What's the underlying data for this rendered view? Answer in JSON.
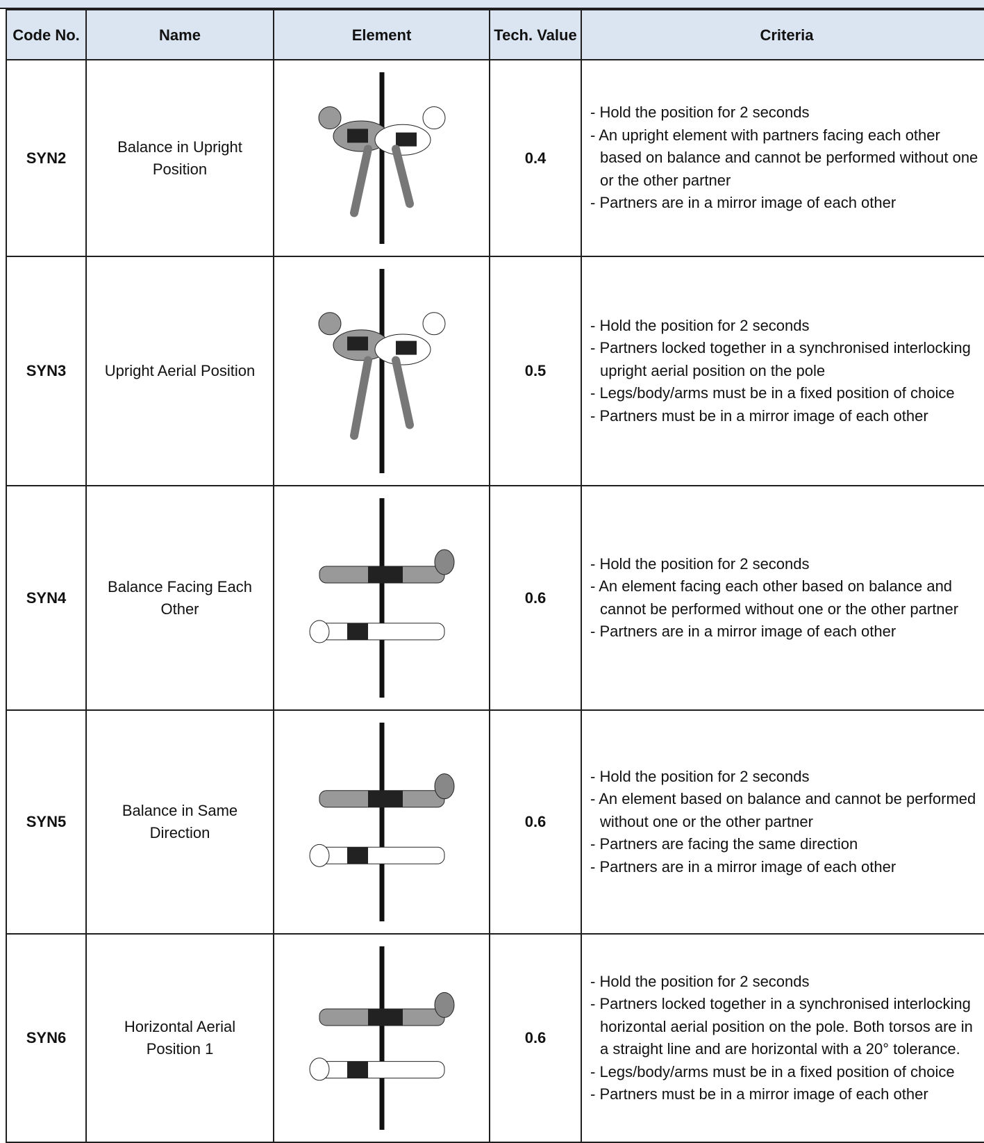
{
  "table": {
    "header": [
      "Code No.",
      "Name",
      "Element",
      "Tech. Value",
      "Criteria"
    ],
    "rows": [
      {
        "code": "SYN2",
        "name": "Balance in Upright Position",
        "value": "0.4",
        "criteria": [
          "- Hold the position for 2 seconds",
          "- An upright element with partners facing each other based on balance and cannot be performed without one or the other partner",
          "- Partners are in a mirror image of each other"
        ]
      },
      {
        "code": "SYN3",
        "name": "Upright Aerial Position",
        "value": "0.5",
        "criteria": [
          "- Hold the position for 2 seconds",
          "- Partners locked together in a synchronised interlocking upright aerial position on the pole",
          "- Legs/body/arms must be in a fixed position of choice",
          "- Partners must be in a mirror image of each other"
        ]
      },
      {
        "code": "SYN4",
        "name": "Balance Facing Each Other",
        "value": "0.6",
        "criteria": [
          "- Hold the position for 2 seconds",
          "- An element facing each other based on balance and cannot be performed without one or the other partner",
          "- Partners are in a mirror image of each other"
        ]
      },
      {
        "code": "SYN5",
        "name": "Balance in Same Direction",
        "value": "0.6",
        "criteria": [
          "- Hold the position for 2 seconds",
          "- An element based on balance and cannot be performed without one or the other partner",
          "- Partners are facing the same direction",
          "- Partners are in a mirror image of each other"
        ]
      },
      {
        "code": "SYN6",
        "name": "Horizontal Aerial Position 1",
        "value": "0.6",
        "criteria": [
          "- Hold the position for 2 seconds",
          "- Partners locked together in a synchronised interlocking horizontal aerial position on the pole. Both torsos are in a straight line and are horizontal with a 20° tolerance.",
          "- Legs/body/arms must be in a fixed position of choice",
          "- Partners must be in a mirror image of each other"
        ]
      }
    ]
  }
}
